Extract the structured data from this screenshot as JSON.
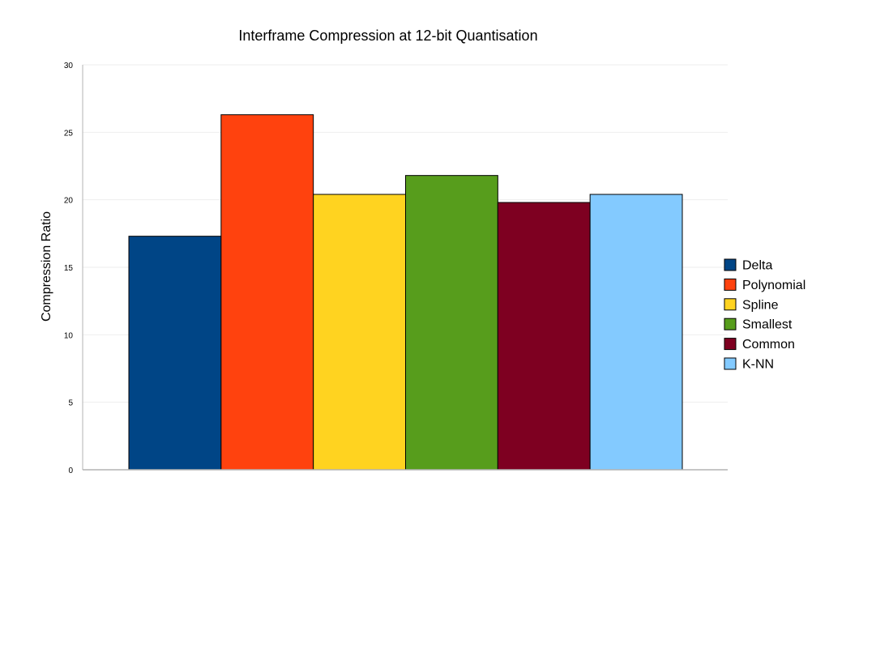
{
  "chart_data": {
    "type": "bar",
    "title": "Interframe Compression at 12-bit Quantisation",
    "xlabel": "",
    "ylabel": "Compression Ratio",
    "ylim": [
      0,
      30
    ],
    "yticks": [
      0,
      5,
      10,
      15,
      20,
      25,
      30
    ],
    "grid": true,
    "legend_position": "right",
    "categories": [
      ""
    ],
    "series": [
      {
        "name": "Delta",
        "values": [
          17.3
        ],
        "color": "#004586"
      },
      {
        "name": "Polynomial",
        "values": [
          26.3
        ],
        "color": "#ff420e"
      },
      {
        "name": "Spline",
        "values": [
          20.4
        ],
        "color": "#ffd320"
      },
      {
        "name": "Smallest",
        "values": [
          21.8
        ],
        "color": "#579d1c"
      },
      {
        "name": "Common",
        "values": [
          19.8
        ],
        "color": "#7e0021"
      },
      {
        "name": "K-NN",
        "values": [
          20.4
        ],
        "color": "#83caff"
      }
    ]
  }
}
